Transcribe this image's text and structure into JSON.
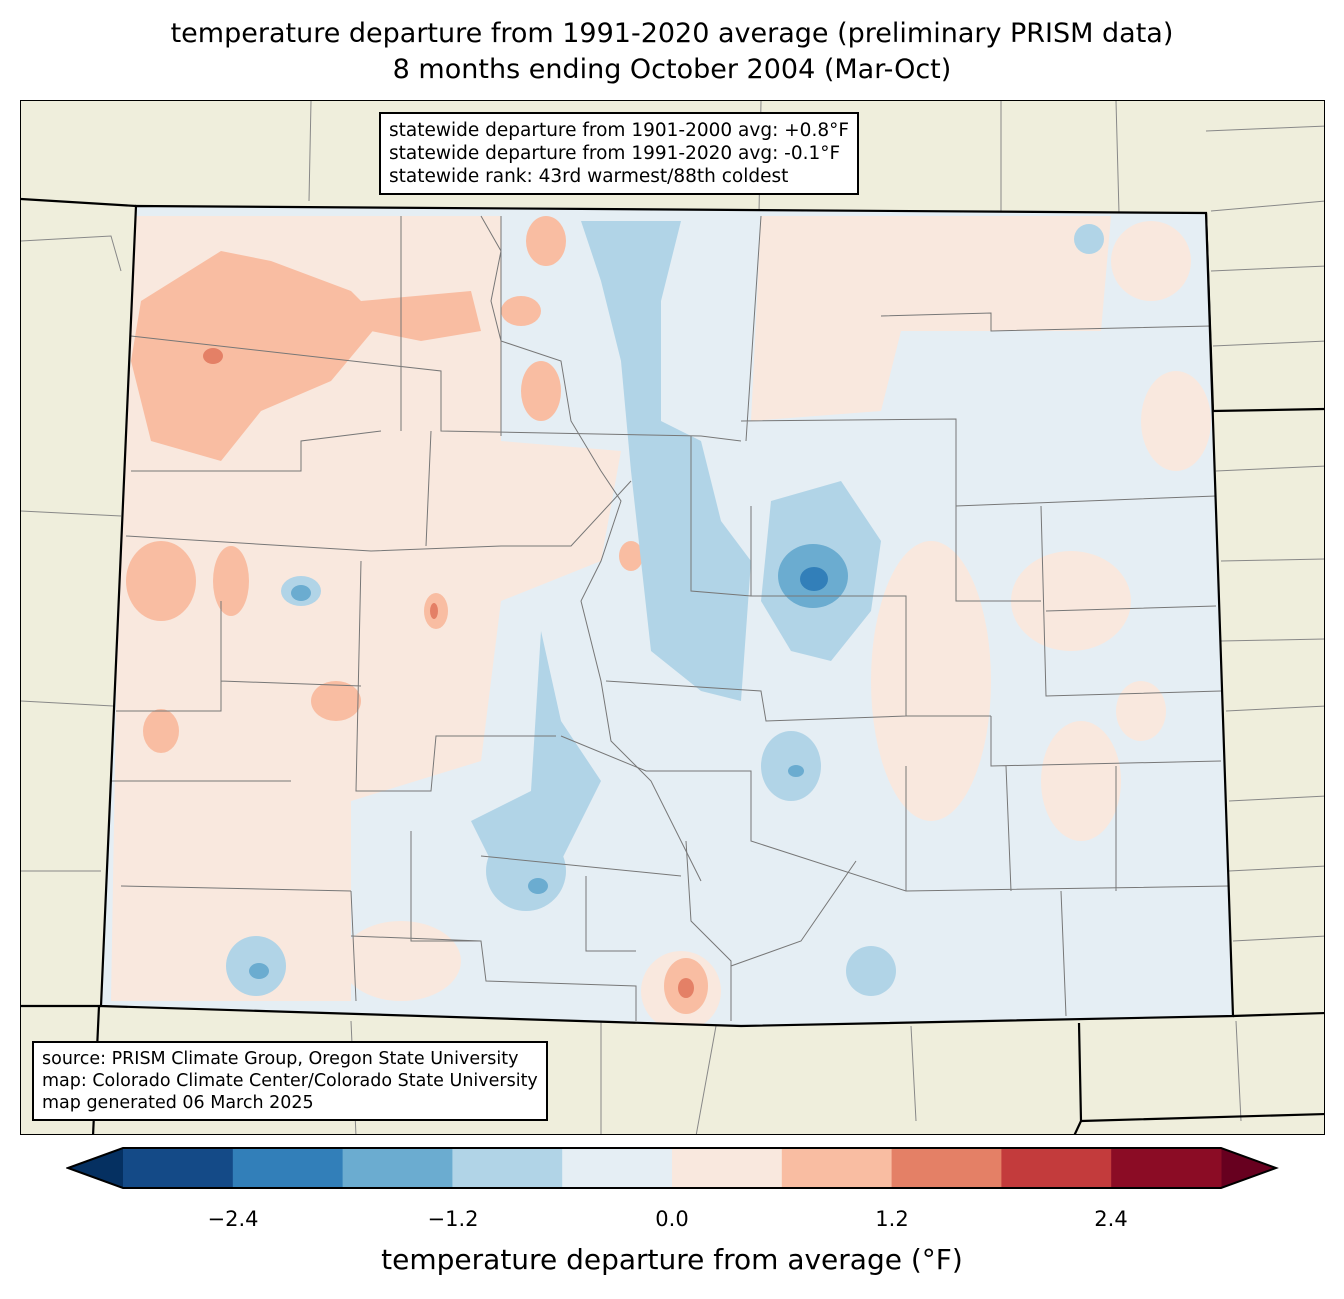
{
  "title": {
    "line1": "temperature departure from 1991-2020 average (preliminary PRISM data)",
    "line2": "8 months ending October 2004 (Mar-Oct)"
  },
  "stats": {
    "line1": "statewide departure from 1901-2000 avg: +0.8°F",
    "line2": "statewide departure from 1991-2020 avg: -0.1°F",
    "line3": "statewide rank: 43rd warmest/88th coldest"
  },
  "source": {
    "line1": "source: PRISM Climate Group, Oregon State University",
    "line2": "map: Colorado Climate Center/Colorado State University",
    "line3": "map generated 06 March 2025"
  },
  "colorbar": {
    "label": "temperature departure from average (°F)",
    "ticks": [
      "−2.4",
      "−1.2",
      "0.0",
      "1.2",
      "2.4"
    ],
    "levels": [
      -3.0,
      -2.4,
      -1.8,
      -1.2,
      -0.6,
      0.0,
      0.6,
      1.2,
      1.8,
      2.4,
      3.0
    ],
    "colors": [
      "#144a87",
      "#327fb9",
      "#6bacd0",
      "#b1d4e7",
      "#e5eef4",
      "#f9e8de",
      "#f9bda2",
      "#e48066",
      "#c33b3c",
      "#8b0c25"
    ],
    "extend_low_color": "#053061",
    "extend_high_color": "#67001f"
  },
  "colors": {
    "land": "#efeedc",
    "state_fill_base": "#e5eef4"
  }
}
